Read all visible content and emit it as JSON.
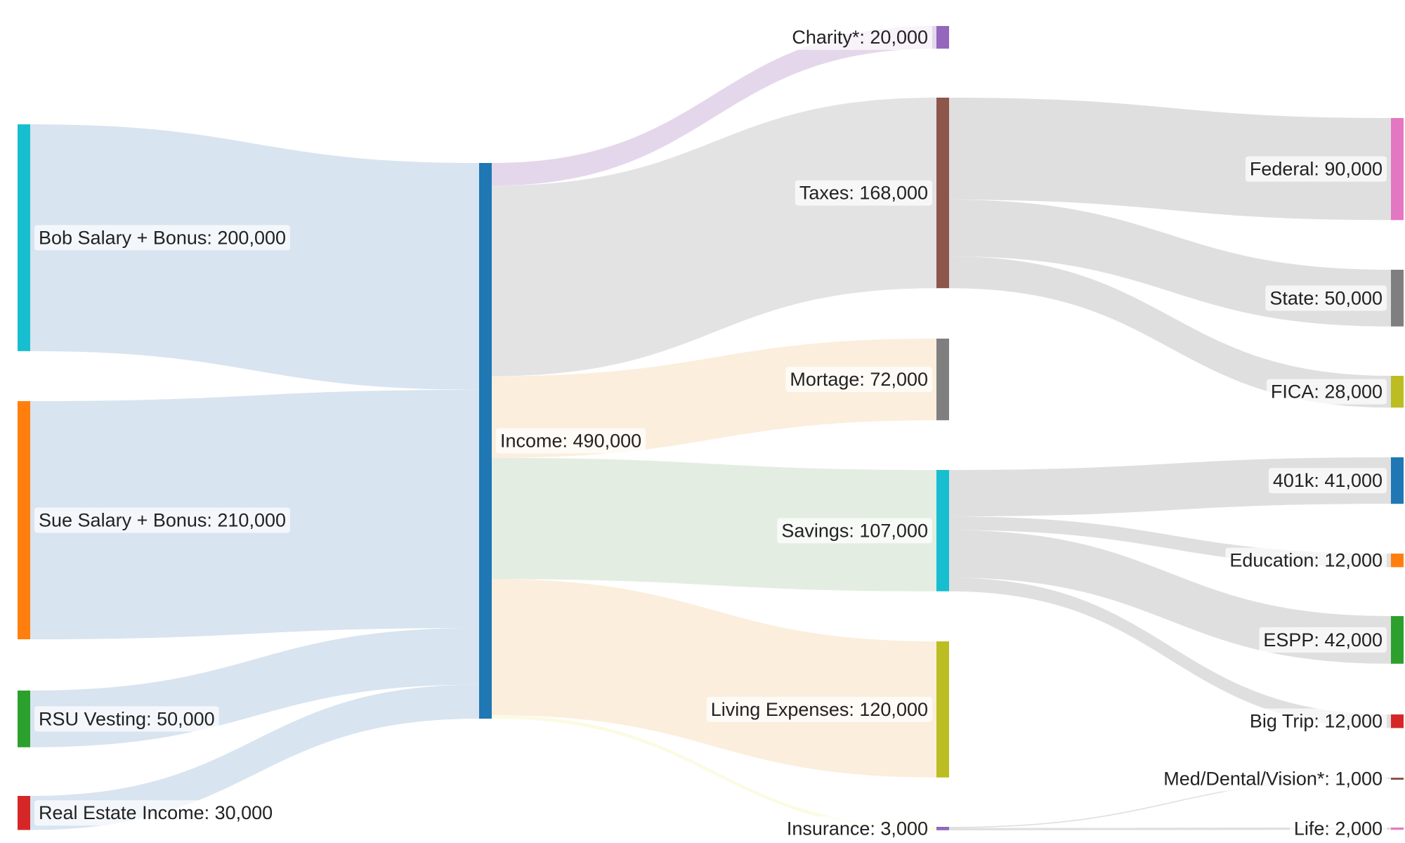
{
  "chart_data": {
    "type": "sankey",
    "title": "",
    "number_format": "comma",
    "nodes": [
      {
        "id": "bob",
        "name": "Bob Salary + Bonus",
        "value": 200000,
        "column": 0,
        "color": "#17becf",
        "link_color": "#d6e3ef"
      },
      {
        "id": "sue",
        "name": "Sue Salary + Bonus",
        "value": 210000,
        "column": 0,
        "color": "#ff7f0e",
        "link_color": "#d6e3ef"
      },
      {
        "id": "rsu",
        "name": "RSU Vesting",
        "value": 50000,
        "column": 0,
        "color": "#2ca02c",
        "link_color": "#d6e3ef"
      },
      {
        "id": "rei",
        "name": "Real Estate Income",
        "value": 30000,
        "column": 0,
        "color": "#d62728",
        "link_color": "#d6e3ef"
      },
      {
        "id": "income",
        "name": "Income",
        "value": 490000,
        "column": 1,
        "color": "#1f77b4"
      },
      {
        "id": "charity",
        "name": "Charity*",
        "value": 20000,
        "column": 2,
        "color": "#9467bd",
        "link_color": "#e3d5ea"
      },
      {
        "id": "taxes",
        "name": "Taxes",
        "value": 168000,
        "column": 2,
        "color": "#8c564b",
        "link_color": "#e2e2e2"
      },
      {
        "id": "mortgage",
        "name": "Mortage",
        "value": 72000,
        "column": 2,
        "color": "#7f7f7f",
        "link_color": "#fbeddb"
      },
      {
        "id": "savings",
        "name": "Savings",
        "value": 107000,
        "column": 2,
        "color": "#17becf",
        "link_color": "#e2ecdf"
      },
      {
        "id": "living",
        "name": "Living Expenses",
        "value": 120000,
        "column": 2,
        "color": "#bcbd22",
        "link_color": "#fbeddb"
      },
      {
        "id": "insurance",
        "name": "Insurance",
        "value": 3000,
        "column": 2,
        "color": "#9467bd",
        "link_color": "#fbfbe2"
      },
      {
        "id": "federal",
        "name": "Federal",
        "value": 90000,
        "column": 3,
        "color": "#e377c2"
      },
      {
        "id": "state",
        "name": "State",
        "value": 50000,
        "column": 3,
        "color": "#7f7f7f"
      },
      {
        "id": "fica",
        "name": "FICA",
        "value": 28000,
        "column": 3,
        "color": "#bcbd22"
      },
      {
        "id": "k401",
        "name": "401k",
        "value": 41000,
        "column": 3,
        "color": "#1f77b4"
      },
      {
        "id": "education",
        "name": "Education",
        "value": 12000,
        "column": 3,
        "color": "#ff7f0e"
      },
      {
        "id": "espp",
        "name": "ESPP",
        "value": 42000,
        "column": 3,
        "color": "#2ca02c"
      },
      {
        "id": "bigtrip",
        "name": "Big Trip",
        "value": 12000,
        "column": 3,
        "color": "#d62728"
      },
      {
        "id": "med",
        "name": "Med/Dental/Vision*",
        "value": 1000,
        "column": 3,
        "color": "#8c564b"
      },
      {
        "id": "life",
        "name": "Life",
        "value": 2000,
        "column": 3,
        "color": "#e377c2"
      }
    ],
    "links": [
      {
        "source": "bob",
        "target": "income",
        "value": 200000
      },
      {
        "source": "sue",
        "target": "income",
        "value": 210000
      },
      {
        "source": "rsu",
        "target": "income",
        "value": 50000
      },
      {
        "source": "rei",
        "target": "income",
        "value": 30000
      },
      {
        "source": "income",
        "target": "charity",
        "value": 20000
      },
      {
        "source": "income",
        "target": "taxes",
        "value": 168000
      },
      {
        "source": "income",
        "target": "mortgage",
        "value": 72000
      },
      {
        "source": "income",
        "target": "savings",
        "value": 107000
      },
      {
        "source": "income",
        "target": "living",
        "value": 120000
      },
      {
        "source": "income",
        "target": "insurance",
        "value": 3000
      },
      {
        "source": "taxes",
        "target": "federal",
        "value": 90000
      },
      {
        "source": "taxes",
        "target": "state",
        "value": 50000
      },
      {
        "source": "taxes",
        "target": "fica",
        "value": 28000
      },
      {
        "source": "savings",
        "target": "k401",
        "value": 41000
      },
      {
        "source": "savings",
        "target": "education",
        "value": 12000
      },
      {
        "source": "savings",
        "target": "espp",
        "value": 42000
      },
      {
        "source": "savings",
        "target": "bigtrip",
        "value": 12000
      },
      {
        "source": "insurance",
        "target": "med",
        "value": 1000
      },
      {
        "source": "insurance",
        "target": "life",
        "value": 2000
      }
    ]
  }
}
